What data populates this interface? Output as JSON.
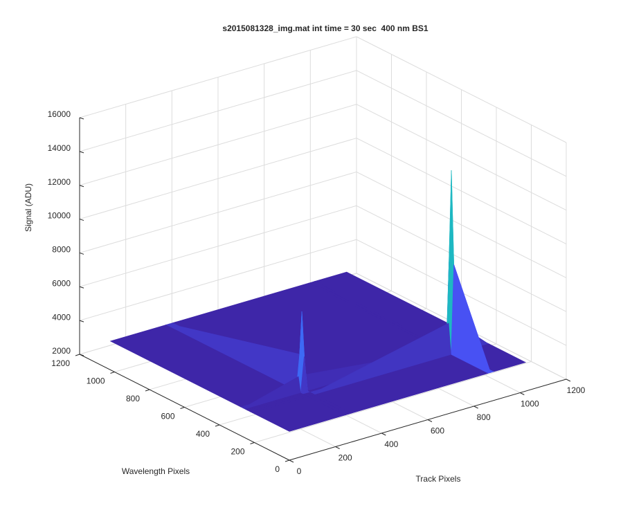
{
  "chart_data": {
    "type": "surface",
    "title": "s2015081328_img.mat int time = 30 sec  400 nm BS1",
    "xlabel": "Track Pixels",
    "ylabel": "Wavelength Pixels",
    "zlabel": "Signal (ADU)",
    "x": [
      0,
      240,
      255,
      270,
      860,
      872,
      885,
      1024
    ],
    "y": [
      0,
      210,
      224,
      238,
      252,
      265,
      278,
      1024
    ],
    "z": [
      [
        3700,
        3700,
        3700,
        3700,
        3700,
        3700,
        3700,
        3700
      ],
      [
        3700,
        3700,
        3700,
        3700,
        3700,
        9000,
        3700,
        3700
      ],
      [
        3700,
        3700,
        3700,
        3700,
        5500,
        14500,
        5500,
        3700
      ],
      [
        3700,
        3700,
        3700,
        3700,
        3700,
        9000,
        3700,
        3700
      ],
      [
        3700,
        3700,
        5800,
        3700,
        3700,
        3700,
        3700,
        3700
      ],
      [
        3700,
        4600,
        8400,
        4600,
        3700,
        3700,
        3700,
        3700
      ],
      [
        3700,
        3700,
        5800,
        3700,
        3700,
        3700,
        3700,
        3700
      ],
      [
        3700,
        3700,
        3700,
        3700,
        3700,
        3700,
        3700,
        3700
      ]
    ],
    "xlim": [
      0,
      1200
    ],
    "xticks": [
      0,
      200,
      400,
      600,
      800,
      1000,
      1200
    ],
    "ylim": [
      0,
      1200
    ],
    "yticks": [
      0,
      200,
      400,
      600,
      800,
      1000,
      1200
    ],
    "zlim": [
      2000,
      16000
    ],
    "zticks": [
      2000,
      4000,
      6000,
      8000,
      10000,
      12000,
      14000,
      16000
    ],
    "colormap": "parula",
    "grid": true
  }
}
